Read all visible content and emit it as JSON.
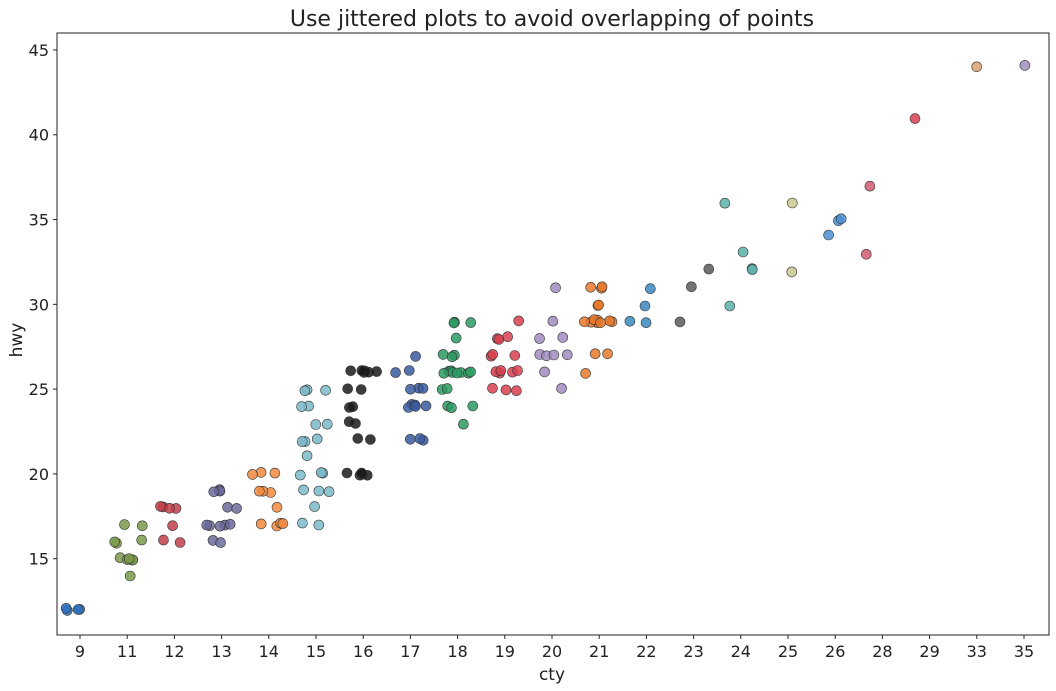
{
  "chart_data": {
    "type": "scatter",
    "title": "Use jittered plots to avoid overlapping of points",
    "xlabel": "cty",
    "ylabel": "hwy",
    "x_categories": [
      "9",
      "11",
      "12",
      "13",
      "14",
      "15",
      "16",
      "17",
      "18",
      "19",
      "20",
      "21",
      "22",
      "23",
      "24",
      "25",
      "26",
      "28",
      "29",
      "33",
      "35"
    ],
    "ylim": [
      10.5,
      46
    ],
    "yticks": [
      15,
      20,
      25,
      30,
      35,
      40,
      45
    ],
    "grid": false,
    "series": [
      {
        "color": "#2a6fbb",
        "points": [
          [
            "9",
            12
          ],
          [
            "9",
            12
          ],
          [
            "9",
            12
          ],
          [
            "9",
            12
          ]
        ]
      },
      {
        "color": "#7a9a4a",
        "points": [
          [
            "11",
            14
          ],
          [
            "11",
            15
          ],
          [
            "11",
            15
          ],
          [
            "11",
            15
          ],
          [
            "11",
            15
          ],
          [
            "11",
            15
          ],
          [
            "11",
            16
          ],
          [
            "11",
            16
          ],
          [
            "11",
            16
          ],
          [
            "11",
            17
          ],
          [
            "11",
            17
          ]
        ]
      },
      {
        "color": "#c0404a",
        "points": [
          [
            "12",
            16
          ],
          [
            "12",
            16
          ],
          [
            "12",
            17
          ],
          [
            "12",
            18
          ],
          [
            "12",
            18
          ],
          [
            "12",
            18
          ],
          [
            "12",
            18
          ]
        ]
      },
      {
        "color": "#6a6a9a",
        "points": [
          [
            "13",
            16
          ],
          [
            "13",
            16
          ],
          [
            "13",
            17
          ],
          [
            "13",
            17
          ],
          [
            "13",
            17
          ],
          [
            "13",
            17
          ],
          [
            "13",
            17
          ],
          [
            "13",
            18
          ],
          [
            "13",
            18
          ],
          [
            "13",
            19
          ],
          [
            "13",
            19
          ],
          [
            "13",
            19
          ],
          [
            "13",
            19
          ]
        ]
      },
      {
        "color": "#f08a40",
        "points": [
          [
            "14",
            17
          ],
          [
            "14",
            17
          ],
          [
            "14",
            17
          ],
          [
            "14",
            17
          ],
          [
            "14",
            18
          ],
          [
            "14",
            19
          ],
          [
            "14",
            19
          ],
          [
            "14",
            19
          ],
          [
            "14",
            20
          ],
          [
            "14",
            20
          ],
          [
            "14",
            20
          ]
        ]
      },
      {
        "color": "#7ab8c8",
        "points": [
          [
            "15",
            17
          ],
          [
            "15",
            17
          ],
          [
            "15",
            18
          ],
          [
            "15",
            19
          ],
          [
            "15",
            19
          ],
          [
            "15",
            19
          ],
          [
            "15",
            20
          ],
          [
            "15",
            20
          ],
          [
            "15",
            20
          ],
          [
            "15",
            21
          ],
          [
            "15",
            22
          ],
          [
            "15",
            22
          ],
          [
            "15",
            22
          ],
          [
            "15",
            23
          ],
          [
            "15",
            23
          ],
          [
            "15",
            24
          ],
          [
            "15",
            24
          ],
          [
            "15",
            25
          ],
          [
            "15",
            25
          ],
          [
            "15",
            25
          ]
        ]
      },
      {
        "color": "#1a1a1a",
        "points": [
          [
            "16",
            20
          ],
          [
            "16",
            20
          ],
          [
            "16",
            20
          ],
          [
            "16",
            20
          ],
          [
            "16",
            20
          ],
          [
            "16",
            22
          ],
          [
            "16",
            22
          ],
          [
            "16",
            23
          ],
          [
            "16",
            23
          ],
          [
            "16",
            24
          ],
          [
            "16",
            24
          ],
          [
            "16",
            25
          ],
          [
            "16",
            25
          ],
          [
            "16",
            26
          ],
          [
            "16",
            26
          ],
          [
            "16",
            26
          ],
          [
            "16",
            26
          ],
          [
            "16",
            26
          ],
          [
            "16",
            26
          ]
        ]
      },
      {
        "color": "#3a5aa0",
        "points": [
          [
            "17",
            22
          ],
          [
            "17",
            22
          ],
          [
            "17",
            22
          ],
          [
            "17",
            24
          ],
          [
            "17",
            24
          ],
          [
            "17",
            24
          ],
          [
            "17",
            24
          ],
          [
            "17",
            24
          ],
          [
            "17",
            25
          ],
          [
            "17",
            25
          ],
          [
            "17",
            25
          ],
          [
            "17",
            26
          ],
          [
            "17",
            26
          ],
          [
            "17",
            27
          ]
        ]
      },
      {
        "color": "#2a9a60",
        "points": [
          [
            "18",
            23
          ],
          [
            "18",
            24
          ],
          [
            "18",
            24
          ],
          [
            "18",
            24
          ],
          [
            "18",
            25
          ],
          [
            "18",
            25
          ],
          [
            "18",
            26
          ],
          [
            "18",
            26
          ],
          [
            "18",
            26
          ],
          [
            "18",
            26
          ],
          [
            "18",
            26
          ],
          [
            "18",
            26
          ],
          [
            "18",
            26
          ],
          [
            "18",
            26
          ],
          [
            "18",
            27
          ],
          [
            "18",
            27
          ],
          [
            "18",
            27
          ],
          [
            "18",
            28
          ],
          [
            "18",
            29
          ],
          [
            "18",
            29
          ],
          [
            "18",
            29
          ]
        ]
      },
      {
        "color": "#d84050",
        "points": [
          [
            "19",
            25
          ],
          [
            "19",
            25
          ],
          [
            "19",
            25
          ],
          [
            "19",
            26
          ],
          [
            "19",
            26
          ],
          [
            "19",
            26
          ],
          [
            "19",
            26
          ],
          [
            "19",
            26
          ],
          [
            "19",
            27
          ],
          [
            "19",
            27
          ],
          [
            "19",
            27
          ],
          [
            "19",
            28
          ],
          [
            "19",
            28
          ],
          [
            "19",
            28
          ],
          [
            "19",
            29
          ]
        ]
      },
      {
        "color": "#a08cc0",
        "points": [
          [
            "20",
            25
          ],
          [
            "20",
            26
          ],
          [
            "20",
            27
          ],
          [
            "20",
            27
          ],
          [
            "20",
            27
          ],
          [
            "20",
            27
          ],
          [
            "20",
            28
          ],
          [
            "20",
            28
          ],
          [
            "20",
            29
          ],
          [
            "20",
            31
          ]
        ]
      },
      {
        "color": "#e8782a",
        "points": [
          [
            "21",
            26
          ],
          [
            "21",
            27
          ],
          [
            "21",
            27
          ],
          [
            "21",
            29
          ],
          [
            "21",
            29
          ],
          [
            "21",
            29
          ],
          [
            "21",
            29
          ],
          [
            "21",
            29
          ],
          [
            "21",
            29
          ],
          [
            "21",
            29
          ],
          [
            "21",
            29
          ],
          [
            "21",
            30
          ],
          [
            "21",
            30
          ],
          [
            "21",
            31
          ],
          [
            "21",
            31
          ],
          [
            "21",
            31
          ]
        ]
      },
      {
        "color": "#3a88c0",
        "points": [
          [
            "22",
            29
          ],
          [
            "22",
            29
          ],
          [
            "22",
            30
          ],
          [
            "22",
            31
          ]
        ]
      },
      {
        "color": "#5a5a5a",
        "points": [
          [
            "23",
            29
          ],
          [
            "23",
            31
          ],
          [
            "23",
            32
          ]
        ]
      },
      {
        "color": "#5ab0a8",
        "points": [
          [
            "24",
            30
          ],
          [
            "24",
            32
          ],
          [
            "24",
            32
          ],
          [
            "24",
            33
          ],
          [
            "24",
            36
          ]
        ]
      },
      {
        "color": "#c8c890",
        "points": [
          [
            "25",
            32
          ],
          [
            "25",
            36
          ]
        ]
      },
      {
        "color": "#4a8ed0",
        "points": [
          [
            "26",
            34
          ],
          [
            "26",
            35
          ],
          [
            "26",
            35
          ]
        ]
      },
      {
        "color": "#d05a70",
        "points": [
          [
            "28",
            33
          ],
          [
            "28",
            37
          ]
        ]
      },
      {
        "color": "#d84050",
        "points": [
          [
            "29",
            41
          ]
        ]
      },
      {
        "color": "#d8a070",
        "points": [
          [
            "33",
            44
          ]
        ]
      },
      {
        "color": "#a090c0",
        "points": [
          [
            "35",
            44
          ]
        ]
      }
    ]
  }
}
